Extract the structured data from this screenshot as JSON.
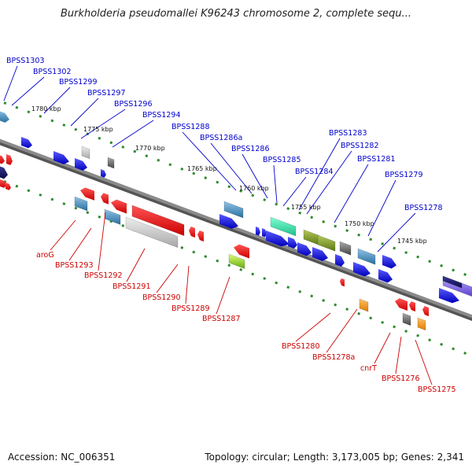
{
  "title": "Burkholderia pseudomallei K96243 chromosome 2, complete sequ...",
  "footer": {
    "accession": "Accession: NC_006351",
    "summary": "Topology: circular; Length: 3,173,005 bp; Genes: 2,341"
  },
  "colors": {
    "backbone": "#8a8a8a",
    "tick_track": "#2e8b2e",
    "forward_label": "#0000cc",
    "reverse_label": "#cc0000"
  },
  "scale_labels": [
    "1780 kbp",
    "1775 kbp",
    "1770 kbp",
    "1765 kbp",
    "1760 kbp",
    "1755 kbp",
    "1750 kbp",
    "1745 kbp"
  ],
  "forward_genes": [
    "BPSS1303",
    "BPSS1302",
    "BPSS1299",
    "BPSS1297",
    "BPSS1296",
    "BPSS1294",
    "BPSS1288",
    "BPSS1286a",
    "BPSS1286",
    "BPSS1285",
    "BPSS1284",
    "BPSS1283",
    "BPSS1282",
    "BPSS1281",
    "BPSS1279",
    "BPSS1278"
  ],
  "reverse_genes": [
    "aroG",
    "BPSS1293",
    "BPSS1292",
    "BPSS1291",
    "BPSS1290",
    "BPSS1289",
    "BPSS1287",
    "BPSS1280",
    "BPSS1278a",
    "cnrT",
    "BPSS1276",
    "BPSS1275"
  ]
}
